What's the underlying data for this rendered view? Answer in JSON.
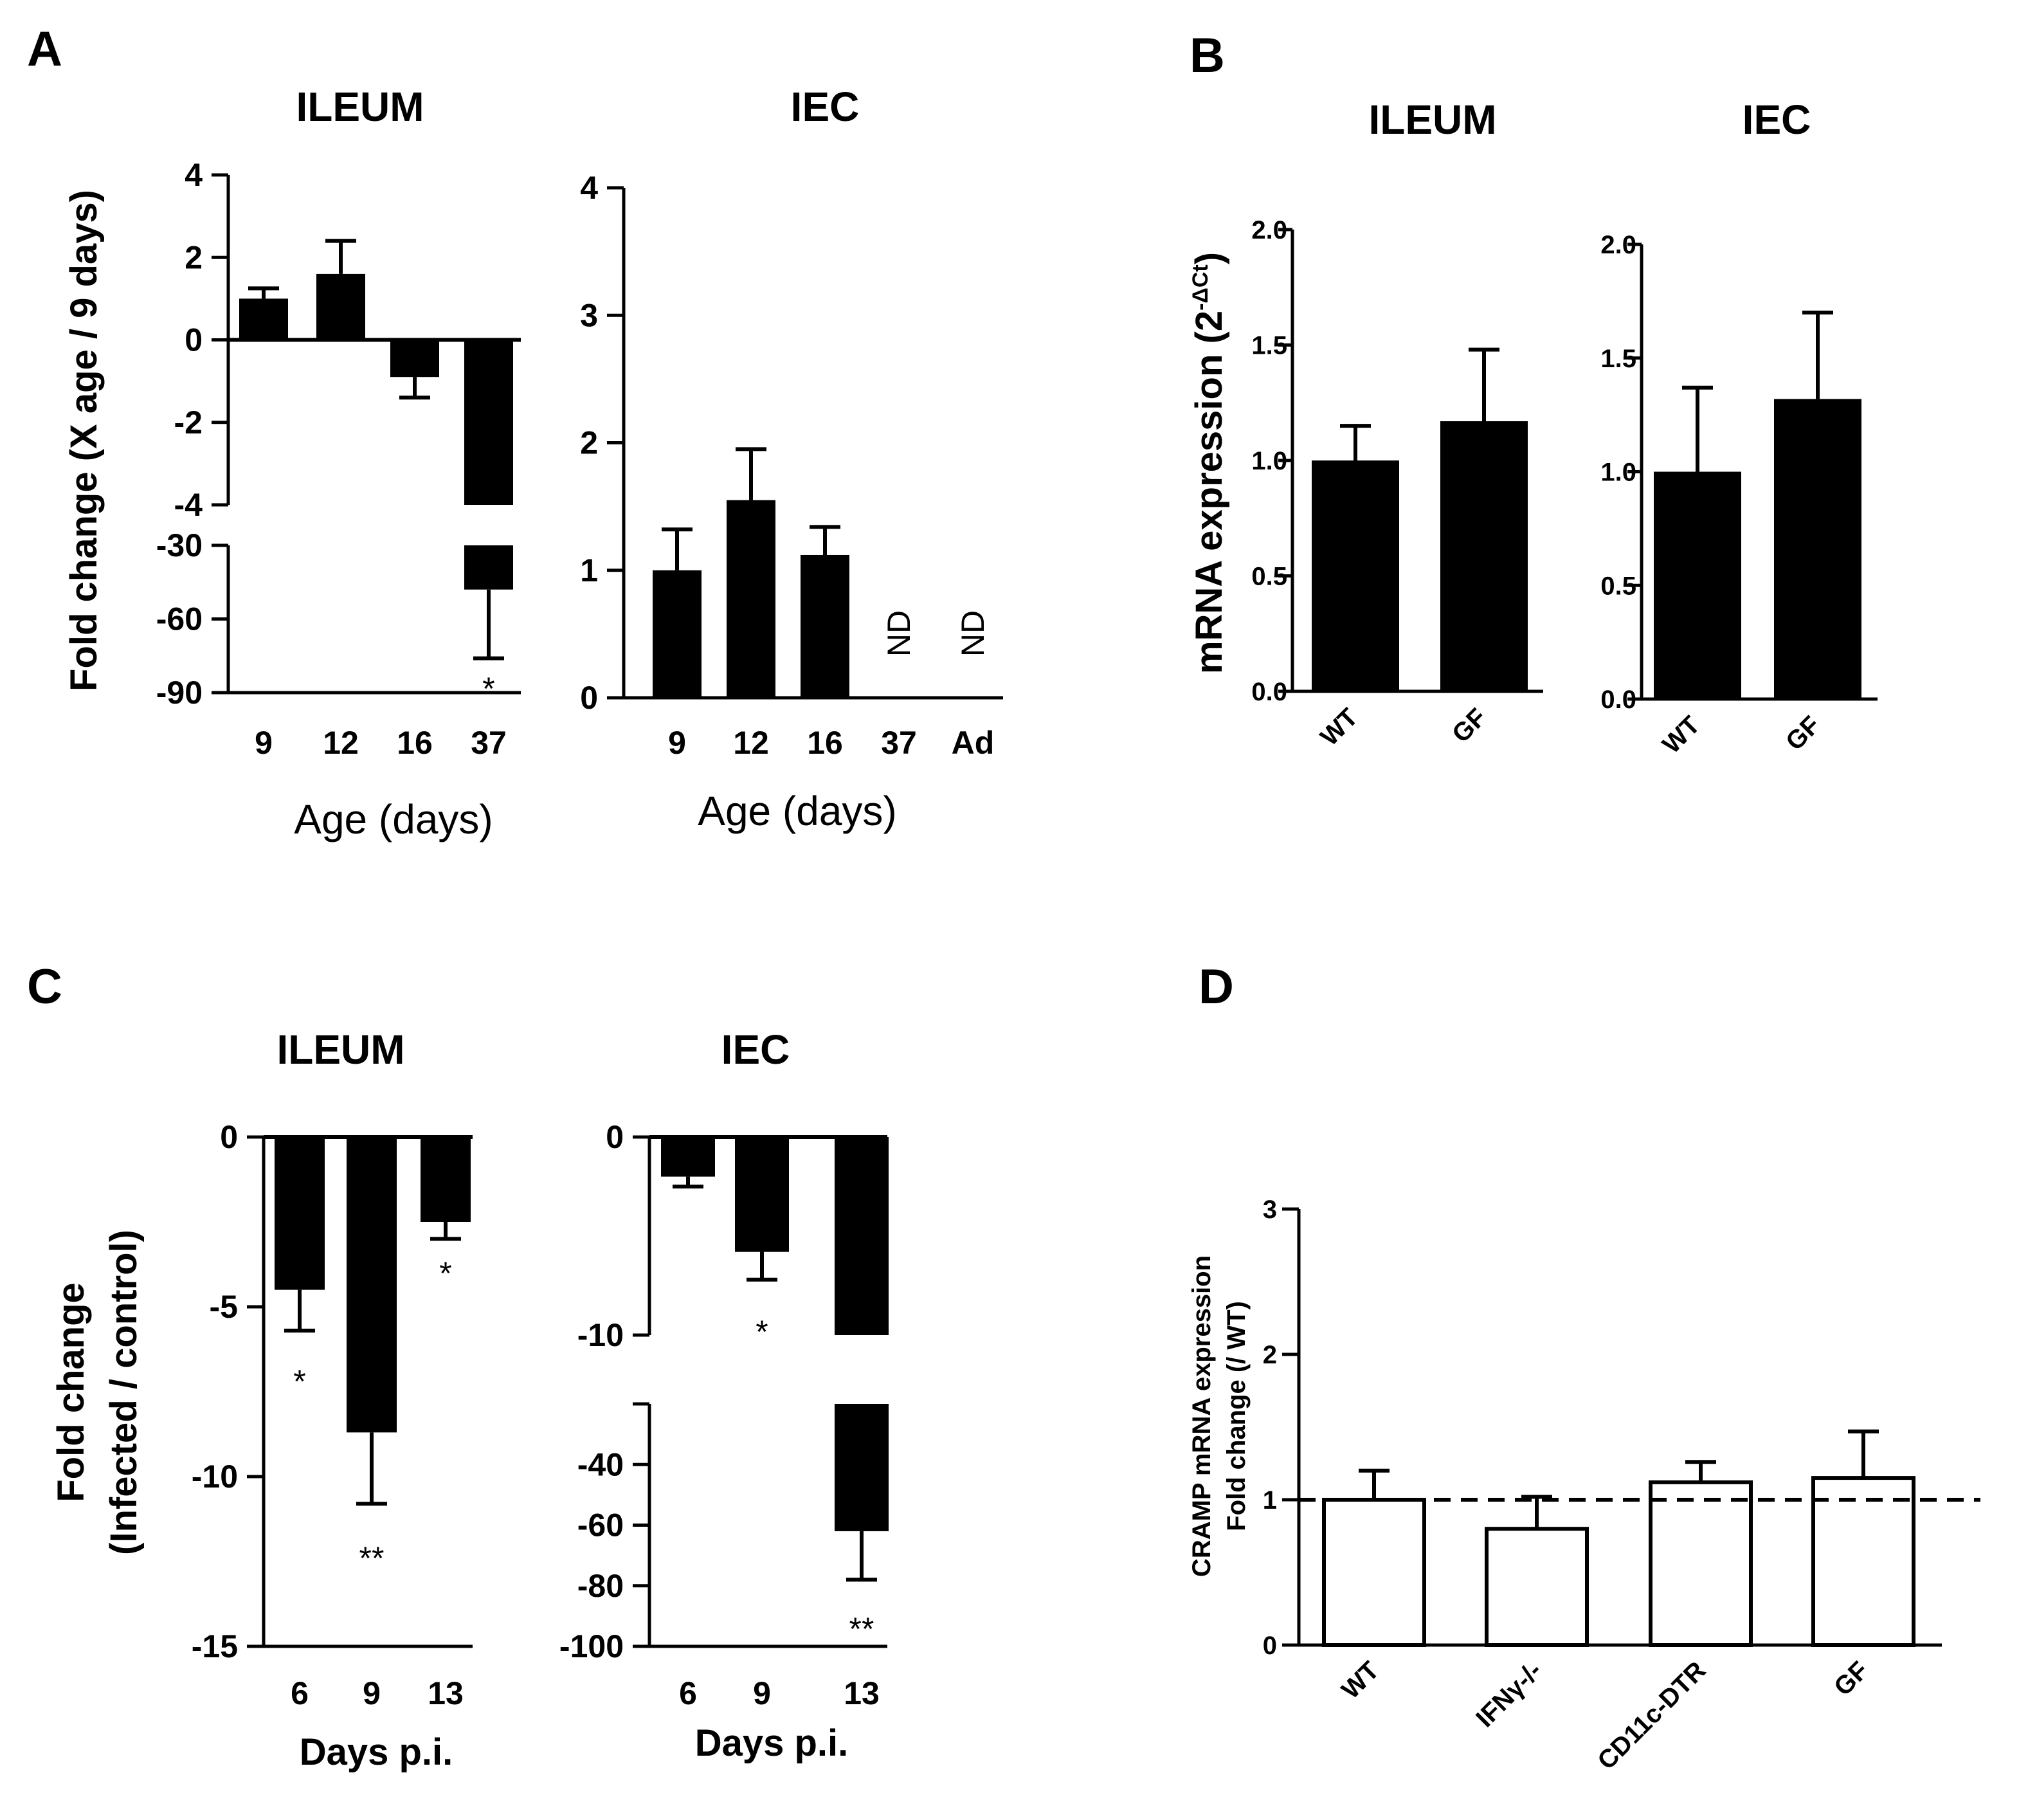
{
  "panels": [
    {
      "key": "A",
      "letter": "A"
    },
    {
      "key": "B",
      "letter": "B"
    },
    {
      "key": "C",
      "letter": "C"
    },
    {
      "key": "D",
      "letter": "D"
    }
  ],
  "chart_data": [
    {
      "id": "A-ileum",
      "panel": "A",
      "type": "bar",
      "broken_axis": true,
      "title": "ILEUM",
      "ylabel": "Fold change (X age / 9 days)",
      "xlabel": "Age (days)",
      "categories": [
        "9",
        "12",
        "16",
        "37"
      ],
      "values": [
        1.0,
        1.6,
        -0.9,
        -48
      ],
      "errors": [
        0.25,
        0.8,
        0.5,
        28
      ],
      "annotations": [
        "",
        "",
        "",
        "*"
      ],
      "ylim_upper": [
        -4,
        4
      ],
      "yticks_upper": [
        4,
        2,
        0,
        -2,
        -4
      ],
      "ylim_lower": [
        -90,
        -30
      ],
      "yticks_lower": [
        -30,
        -60,
        -90
      ]
    },
    {
      "id": "A-iec",
      "panel": "A",
      "type": "bar",
      "title": "IEC",
      "xlabel": "Age (days)",
      "categories": [
        "9",
        "12",
        "16",
        "37",
        "Ad"
      ],
      "values": [
        1.0,
        1.55,
        1.12,
        null,
        null
      ],
      "errors": [
        0.32,
        0.4,
        0.22,
        null,
        null
      ],
      "annotations": [
        "",
        "",
        "",
        "ND",
        "ND"
      ],
      "ylim": [
        0,
        4
      ],
      "yticks": [
        0,
        1,
        2,
        3,
        4
      ]
    },
    {
      "id": "B-ileum",
      "panel": "B",
      "type": "bar",
      "title": "ILEUM",
      "ylabel": "mRNA expression (2",
      "ylabel_sup": "-ΔCt",
      "ylabel_close": ")",
      "categories": [
        "WT",
        "GF"
      ],
      "values": [
        1.0,
        1.17
      ],
      "errors": [
        0.15,
        0.31
      ],
      "ylim": [
        0,
        2.0
      ],
      "yticks": [
        "0.0",
        "0.5",
        "1.0",
        "1.5",
        "2.0"
      ]
    },
    {
      "id": "B-iec",
      "panel": "B",
      "type": "bar",
      "title": "IEC",
      "categories": [
        "WT",
        "GF"
      ],
      "values": [
        1.0,
        1.32
      ],
      "errors": [
        0.37,
        0.38
      ],
      "ylim": [
        0,
        2.0
      ],
      "yticks": [
        "0.0",
        "0.5",
        "1.0",
        "1.5",
        "2.0"
      ]
    },
    {
      "id": "C-ileum",
      "panel": "C",
      "type": "bar",
      "title": "ILEUM",
      "ylabel": "Fold change",
      "ylabel2": "(Infected / control)",
      "xlabel": "Days p.i.",
      "categories": [
        "6",
        "9",
        "13"
      ],
      "values": [
        -4.5,
        -8.7,
        -2.5
      ],
      "errors": [
        1.2,
        2.1,
        0.5
      ],
      "annotations": [
        "*",
        "**",
        "*"
      ],
      "ylim": [
        -15,
        0
      ],
      "yticks": [
        0,
        -5,
        -10,
        -15
      ]
    },
    {
      "id": "C-iec",
      "panel": "C",
      "type": "bar",
      "broken_axis": true,
      "title": "IEC",
      "xlabel": "Days p.i.",
      "categories": [
        "6",
        "9",
        "13"
      ],
      "values": [
        -2.0,
        -5.8,
        -62
      ],
      "errors": [
        0.5,
        1.4,
        16
      ],
      "annotations": [
        "",
        "*",
        "**"
      ],
      "ylim_upper": [
        -10,
        0
      ],
      "yticks_upper": [
        0,
        -10
      ],
      "ylim_lower": [
        -100,
        -20
      ],
      "yticks_lower": [
        -40,
        -60,
        -80,
        -100
      ]
    },
    {
      "id": "D",
      "panel": "D",
      "type": "bar",
      "style": "open",
      "ylabel": "CRAMP mRNA expression",
      "ylabel2": "Fold change (/ WT)",
      "categories": [
        "WT",
        "IFNγ-/-",
        "CD11c-DTR",
        "GF"
      ],
      "values": [
        1.0,
        0.8,
        1.12,
        1.15
      ],
      "errors": [
        0.2,
        0.22,
        0.14,
        0.32
      ],
      "reference_line": 1,
      "ylim": [
        0,
        3
      ],
      "yticks": [
        0,
        1,
        2,
        3
      ]
    }
  ]
}
